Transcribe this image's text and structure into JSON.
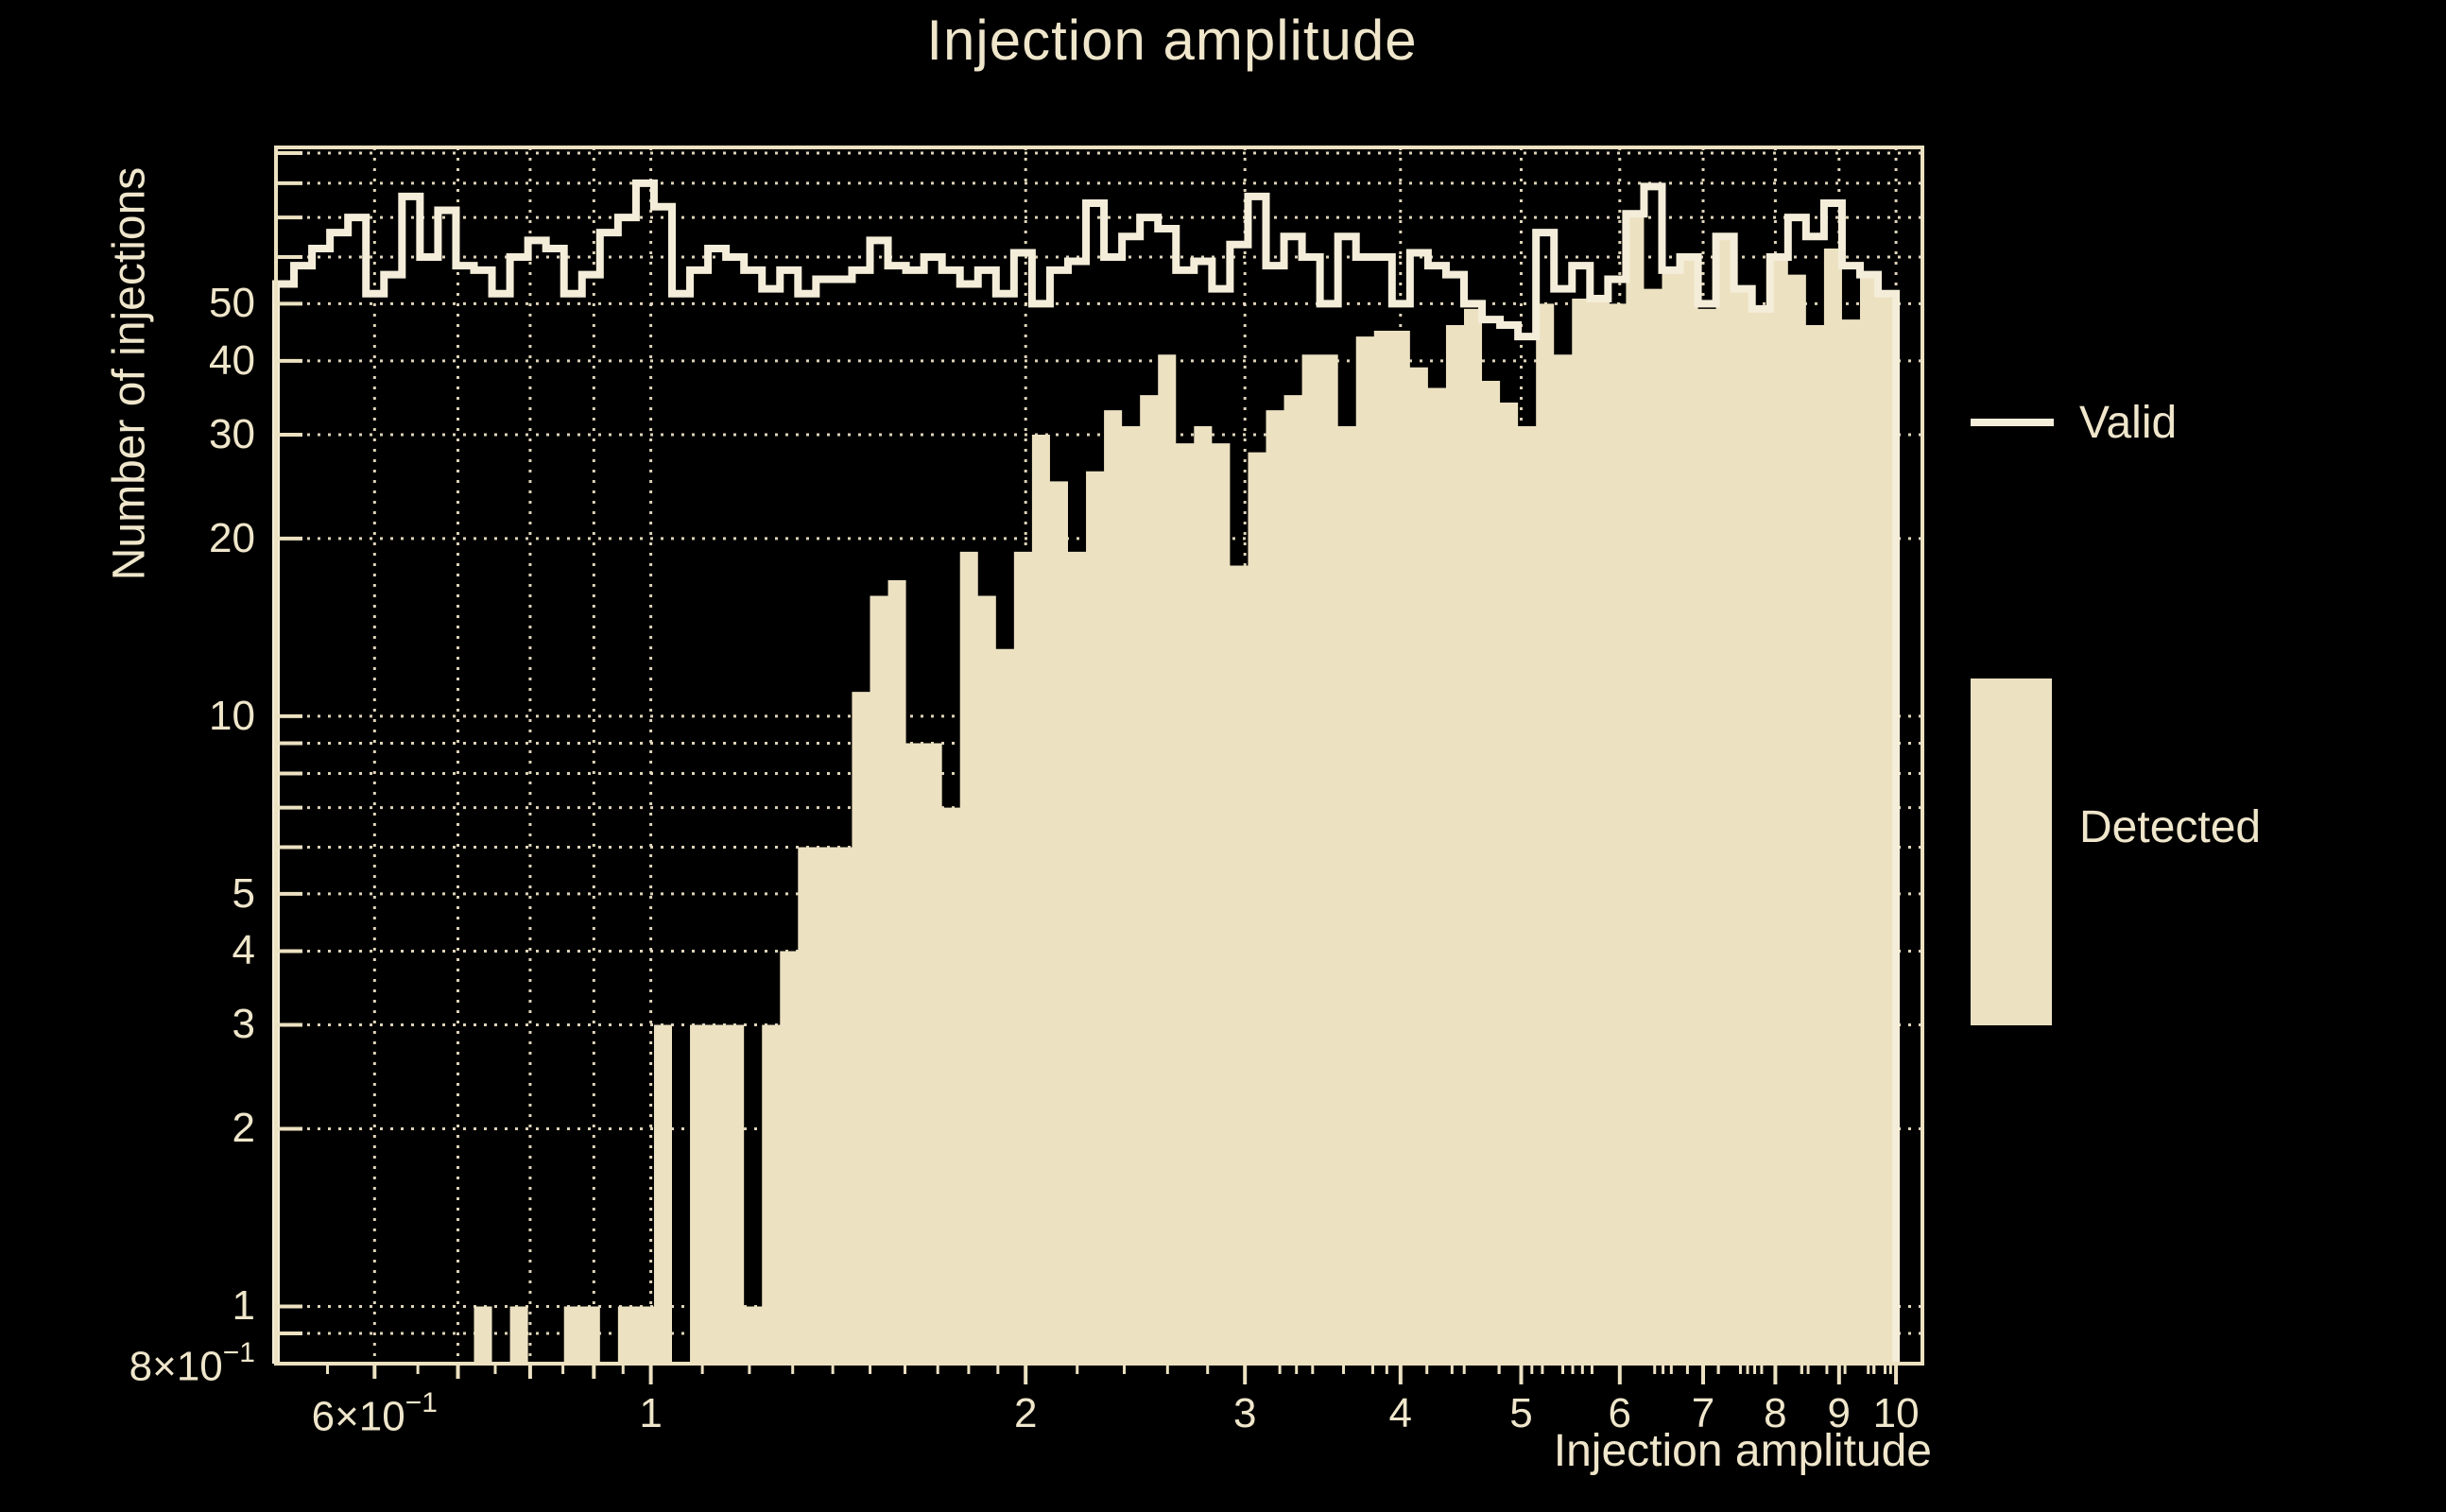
{
  "colors": {
    "background": "#000000",
    "fill": "#ece1c1",
    "line": "#f4edd9",
    "text": "#efe6cb",
    "grid": "#e9dec2",
    "frame": "#ece1c1"
  },
  "chart_data": {
    "type": "bar",
    "title": "Injection amplitude",
    "xlabel": "Injection amplitude",
    "ylabel": "Number of injections",
    "x_scale": "log",
    "y_scale": "log",
    "xlim": [
      0.5,
      10.5
    ],
    "ylim": [
      0.8,
      92
    ],
    "grid": "on",
    "grid_style": "dotted",
    "bins": {
      "min": 0.5,
      "max": 10.0,
      "count": 90,
      "spacing": "log"
    },
    "series": [
      {
        "name": "Valid",
        "style": "step-outline",
        "values": [
          54,
          58,
          62,
          66,
          70,
          52,
          56,
          76,
          60,
          72,
          58,
          57,
          52,
          60,
          64,
          62,
          52,
          56,
          66,
          70,
          80,
          73,
          52,
          57,
          62,
          60,
          57,
          53,
          57,
          52,
          55,
          55,
          57,
          64,
          58,
          57,
          60,
          57,
          54,
          57,
          52,
          61,
          50,
          57,
          59,
          74,
          60,
          65,
          70,
          67,
          57,
          59,
          53,
          63,
          76,
          58,
          65,
          60,
          50,
          65,
          60,
          60,
          50,
          61,
          58,
          56,
          50,
          47,
          46,
          44,
          66,
          53,
          58,
          51,
          55,
          71,
          79,
          57,
          60,
          50,
          65,
          53,
          49,
          60,
          70,
          65,
          74,
          58,
          56,
          52
        ]
      },
      {
        "name": "Detected",
        "style": "filled",
        "values": [
          0,
          0,
          0,
          0,
          0,
          0,
          0,
          0,
          0,
          0,
          0,
          1,
          0,
          1,
          0,
          0,
          1,
          1,
          0,
          1,
          1,
          3,
          0,
          3,
          3,
          3,
          1,
          3,
          4,
          6,
          6,
          6,
          11,
          16,
          17,
          9,
          9,
          7,
          19,
          16,
          13,
          19,
          30,
          25,
          19,
          26,
          33,
          31,
          35,
          41,
          29,
          31,
          29,
          18,
          28,
          33,
          35,
          41,
          41,
          31,
          44,
          45,
          45,
          39,
          36,
          46,
          49,
          37,
          34,
          31,
          50,
          41,
          51,
          51,
          50,
          71,
          53,
          57,
          60,
          49,
          65,
          53,
          49,
          60,
          56,
          46,
          62,
          47,
          56,
          52
        ]
      }
    ],
    "axes": {
      "x": {
        "label": "Injection amplitude",
        "ticks": [
          {
            "v": 0.6,
            "label": "6×10^−1"
          },
          {
            "v": 1,
            "label": "1"
          },
          {
            "v": 2,
            "label": "2"
          },
          {
            "v": 3,
            "label": "3"
          },
          {
            "v": 4,
            "label": "4"
          },
          {
            "v": 5,
            "label": "5"
          },
          {
            "v": 6,
            "label": "6"
          },
          {
            "v": 7,
            "label": "7"
          },
          {
            "v": 8,
            "label": "8"
          },
          {
            "v": 9,
            "label": "9"
          },
          {
            "v": 10,
            "label": "10"
          }
        ],
        "gridlines": [
          0.6,
          0.7,
          0.8,
          0.9,
          1,
          2,
          3,
          4,
          5,
          6,
          7,
          8,
          9,
          10
        ]
      },
      "y": {
        "label": "Number of injections",
        "ticks": [
          {
            "v": 50,
            "label": "50"
          },
          {
            "v": 40,
            "label": "40"
          },
          {
            "v": 30,
            "label": "30"
          },
          {
            "v": 20,
            "label": "20"
          },
          {
            "v": 10,
            "label": "10"
          },
          {
            "v": 5,
            "label": "5"
          },
          {
            "v": 4,
            "label": "4"
          },
          {
            "v": 3,
            "label": "3"
          },
          {
            "v": 2,
            "label": "2"
          },
          {
            "v": 1,
            "label": "1"
          },
          {
            "v": 0.8,
            "label": "8×10^−1"
          }
        ],
        "gridlines": [
          0.9,
          1,
          2,
          3,
          4,
          5,
          6,
          7,
          8,
          9,
          10,
          20,
          30,
          40,
          50,
          60,
          70,
          80,
          90
        ]
      }
    },
    "legend": {
      "position": "right",
      "entries": [
        {
          "label": "Valid",
          "type": "line"
        },
        {
          "label": "Detected",
          "type": "fill"
        }
      ]
    }
  }
}
